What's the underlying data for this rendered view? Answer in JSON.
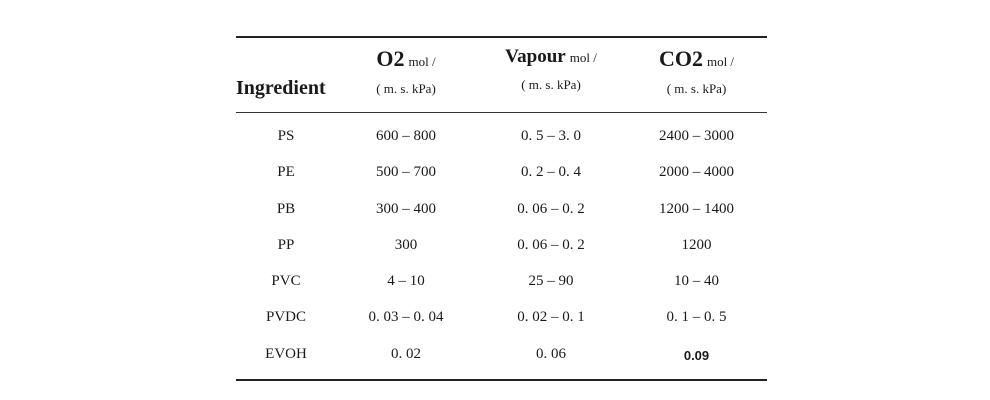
{
  "table": {
    "row_header_label": "Ingredient",
    "columns": [
      {
        "name": "O2",
        "unit_top": "mol /",
        "unit_bottom": "( m. s. kPa)"
      },
      {
        "name": "Vapour",
        "unit_top": "mol /",
        "unit_bottom": "( m. s. kPa)"
      },
      {
        "name": "CO2",
        "unit_top": "mol /",
        "unit_bottom": "( m. s. kPa)"
      }
    ],
    "rows": [
      {
        "ingredient": "PS",
        "o2": "600 – 800",
        "vapour": "0. 5 – 3. 0",
        "co2": "2400 – 3000"
      },
      {
        "ingredient": "PE",
        "o2": "500 – 700",
        "vapour": "0. 2 – 0. 4",
        "co2": "2000 – 4000"
      },
      {
        "ingredient": "PB",
        "o2": "300 – 400",
        "vapour": "0. 06 – 0. 2",
        "co2": "1200 – 1400"
      },
      {
        "ingredient": "PP",
        "o2": "300",
        "vapour": "0. 06 – 0. 2",
        "co2": "1200"
      },
      {
        "ingredient": "PVC",
        "o2": "4 – 10",
        "vapour": "25 – 90",
        "co2": "10 – 40"
      },
      {
        "ingredient": "PVDC",
        "o2": "0. 03 – 0. 04",
        "vapour": "0. 02 – 0. 1",
        "co2": "0. 1 – 0. 5"
      },
      {
        "ingredient": "EVOH",
        "o2": "0. 02",
        "vapour": "0. 06",
        "co2": "0.09"
      }
    ]
  }
}
